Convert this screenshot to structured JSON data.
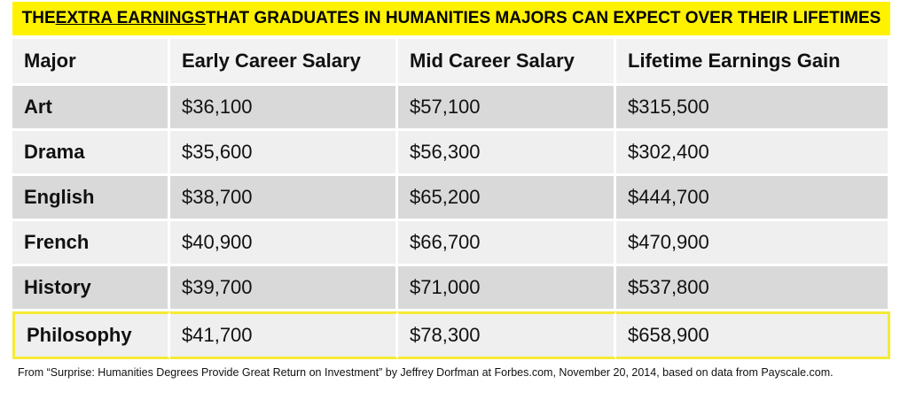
{
  "chart_data": {
    "type": "table",
    "title": {
      "pre": "THE ",
      "emphasis": "EXTRA EARNINGS",
      "post": " THAT GRADUATES IN HUMANITIES MAJORS CAN EXPECT OVER THEIR LIFETIMES"
    },
    "columns": [
      "Major",
      "Early Career Salary",
      "Mid Career Salary",
      "Lifetime Earnings Gain"
    ],
    "rows": [
      [
        "Art",
        "$36,100",
        "$57,100",
        "$315,500"
      ],
      [
        "Drama",
        "$35,600",
        "$56,300",
        "$302,400"
      ],
      [
        "English",
        "$38,700",
        "$65,200",
        "$444,700"
      ],
      [
        "French",
        "$40,900",
        "$66,700",
        "$470,900"
      ],
      [
        "History",
        "$39,700",
        "$71,000",
        "$537,800"
      ],
      [
        "Philosophy",
        "$41,700",
        "$78,300",
        "$658,900"
      ]
    ],
    "highlighted_row": "Philosophy",
    "source": "From “Surprise: Humanities Degrees Provide Great Return on Investment” by Jeffrey Dorfman at Forbes.com, November 20, 2014, based on data from Payscale.com."
  },
  "colors": {
    "banner": "#fff200",
    "highlight_border": "#f5ea35",
    "row_dark": "#d9d9d9",
    "row_light": "#efefef"
  }
}
